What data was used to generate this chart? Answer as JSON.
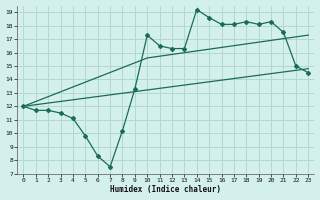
{
  "title": "",
  "xlabel": "Humidex (Indice chaleur)",
  "bg_color": "#d4f0ec",
  "grid_color": "#b0d8d4",
  "line_color": "#1a6b5a",
  "xlim": [
    -0.5,
    23.5
  ],
  "ylim": [
    7,
    19.5
  ],
  "xticks": [
    0,
    1,
    2,
    3,
    4,
    5,
    6,
    7,
    8,
    9,
    10,
    11,
    12,
    13,
    14,
    15,
    16,
    17,
    18,
    19,
    20,
    21,
    22,
    23
  ],
  "yticks": [
    7,
    8,
    9,
    10,
    11,
    12,
    13,
    14,
    15,
    16,
    17,
    18,
    19
  ],
  "line1_x": [
    0,
    1,
    2,
    3,
    4,
    5,
    6,
    7,
    8,
    9,
    10,
    11,
    12,
    13,
    14,
    15,
    16,
    17,
    18,
    19,
    20,
    21,
    22,
    23
  ],
  "line1_y": [
    12.0,
    11.7,
    11.7,
    11.5,
    11.1,
    9.8,
    8.3,
    7.5,
    10.2,
    13.3,
    17.3,
    16.5,
    16.3,
    16.3,
    19.2,
    18.6,
    18.1,
    18.1,
    18.3,
    18.1,
    18.3,
    17.5,
    15.0,
    14.5
  ],
  "line2_x": [
    0,
    10,
    23
  ],
  "line2_y": [
    12.0,
    15.6,
    17.3
  ],
  "line3_x": [
    0,
    23
  ],
  "line3_y": [
    12.0,
    14.8
  ]
}
